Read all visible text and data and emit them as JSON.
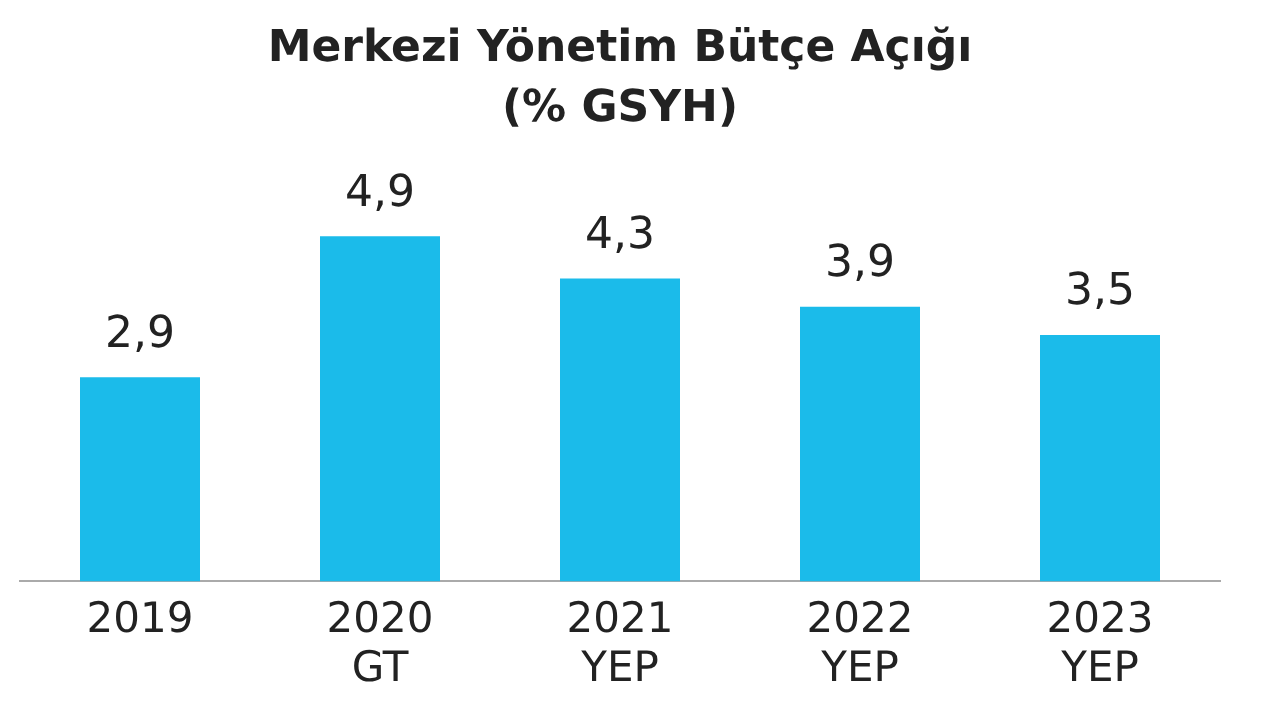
{
  "chart_data": {
    "type": "bar",
    "title": "Merkezi Yönetim Bütçe Açığı\n(% GSYH)",
    "categories": [
      "2019",
      "2020\nGT",
      "2021\nYEP",
      "2022\nYEP",
      "2023\nYEP"
    ],
    "values": [
      2.9,
      4.9,
      4.3,
      3.9,
      3.5
    ],
    "value_labels": [
      "2,9",
      "4,9",
      "4,3",
      "3,9",
      "3,5"
    ],
    "color": "#1bbbea",
    "grid": false,
    "legend": false
  }
}
